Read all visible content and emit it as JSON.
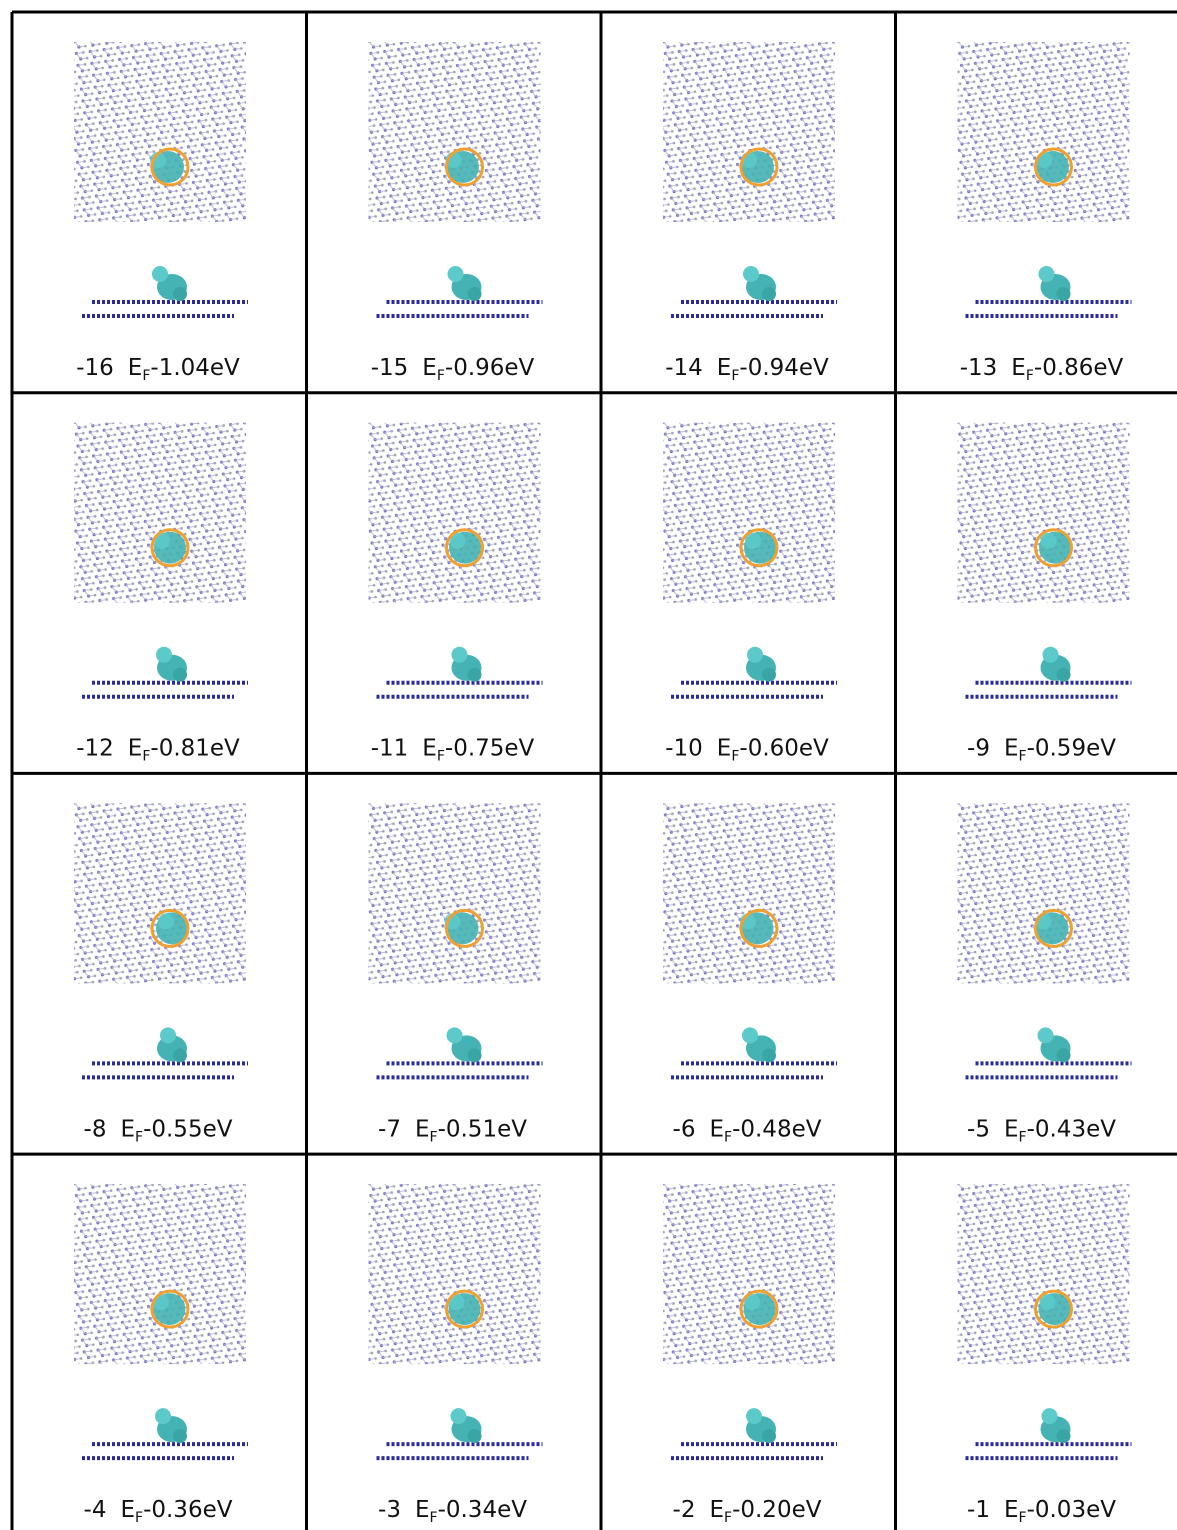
{
  "panels": [
    {
      "number": "-16",
      "level": "E",
      "sub": "F",
      "offset": "-1.04eV"
    },
    {
      "number": "-15",
      "level": "E",
      "sub": "F",
      "offset": "-0.96eV"
    },
    {
      "number": "-14",
      "level": "E",
      "sub": "F",
      "offset": "-0.94eV"
    },
    {
      "number": "-13",
      "level": "E",
      "sub": "F",
      "offset": "-0.86eV"
    },
    {
      "number": "-12",
      "level": "E",
      "sub": "F",
      "offset": "-0.81eV"
    },
    {
      "number": "-11",
      "level": "E",
      "sub": "F",
      "offset": "-0.75eV"
    },
    {
      "number": "-10",
      "level": "E",
      "sub": "F",
      "offset": "-0.60eV"
    },
    {
      "number": "-9",
      "level": "E",
      "sub": "F",
      "offset": "-0.59eV"
    },
    {
      "number": "-8",
      "level": "E",
      "sub": "F",
      "offset": "-0.55eV"
    },
    {
      "number": "-7",
      "level": "E",
      "sub": "F",
      "offset": "-0.51eV"
    },
    {
      "number": "-6",
      "level": "E",
      "sub": "F",
      "offset": "-0.48eV"
    },
    {
      "number": "-5",
      "level": "E",
      "sub": "F",
      "offset": "-0.43eV"
    },
    {
      "number": "-4",
      "level": "E",
      "sub": "F",
      "offset": "-0.36eV"
    },
    {
      "number": "-3",
      "level": "E",
      "sub": "F",
      "offset": "-0.34eV"
    },
    {
      "number": "-2",
      "level": "E",
      "sub": "F",
      "offset": "-0.20eV"
    },
    {
      "number": "-1",
      "level": "E",
      "sub": "F",
      "offset": "-0.03eV"
    }
  ]
}
